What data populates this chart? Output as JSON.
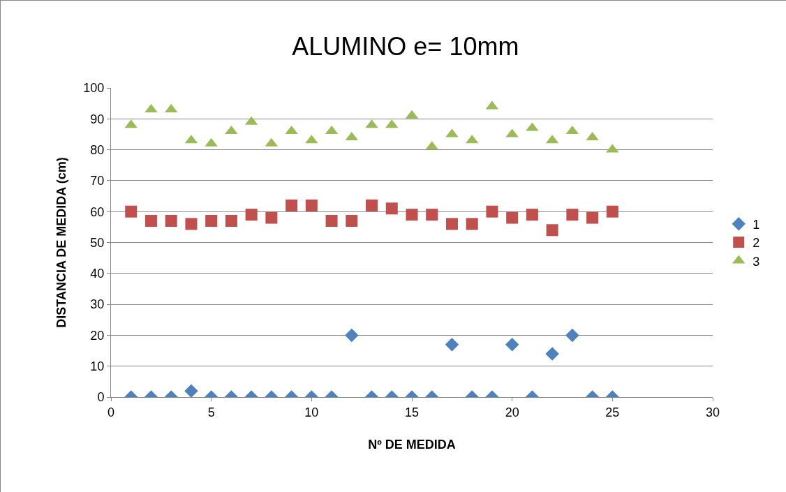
{
  "chart_data": {
    "type": "scatter",
    "title": "ALUMINO e= 10mm",
    "xlabel": "Nº DE MEDIDA",
    "ylabel": "DISTANCIA DE MEDIDA (cm)",
    "x": [
      1,
      2,
      3,
      4,
      5,
      6,
      7,
      8,
      9,
      10,
      11,
      12,
      13,
      14,
      15,
      16,
      17,
      18,
      19,
      20,
      21,
      22,
      23,
      24,
      25
    ],
    "series": [
      {
        "name": "1",
        "color": "#4f81bd",
        "marker": "diamond",
        "values": [
          0,
          0,
          0,
          2,
          0,
          0,
          0,
          0,
          0,
          0,
          0,
          20,
          0,
          0,
          0,
          0,
          17,
          0,
          0,
          17,
          0,
          14,
          20,
          0,
          0
        ]
      },
      {
        "name": "2",
        "color": "#c0504d",
        "marker": "square",
        "values": [
          60,
          57,
          57,
          56,
          57,
          57,
          59,
          58,
          62,
          62,
          57,
          57,
          62,
          61,
          59,
          59,
          56,
          56,
          60,
          58,
          59,
          54,
          59,
          58,
          60
        ]
      },
      {
        "name": "3",
        "color": "#9bbb59",
        "marker": "triangle",
        "values": [
          88,
          93,
          93,
          83,
          82,
          86,
          89,
          82,
          86,
          83,
          86,
          84,
          88,
          88,
          91,
          81,
          85,
          83,
          94,
          85,
          87,
          83,
          86,
          84,
          80
        ]
      }
    ],
    "xlim": [
      0,
      30
    ],
    "xticks": [
      0,
      5,
      10,
      15,
      20,
      25,
      30
    ],
    "ylim": [
      0,
      100
    ],
    "yticks": [
      0,
      10,
      20,
      30,
      40,
      50,
      60,
      70,
      80,
      90,
      100
    ],
    "grid": "y",
    "legend": "right"
  }
}
